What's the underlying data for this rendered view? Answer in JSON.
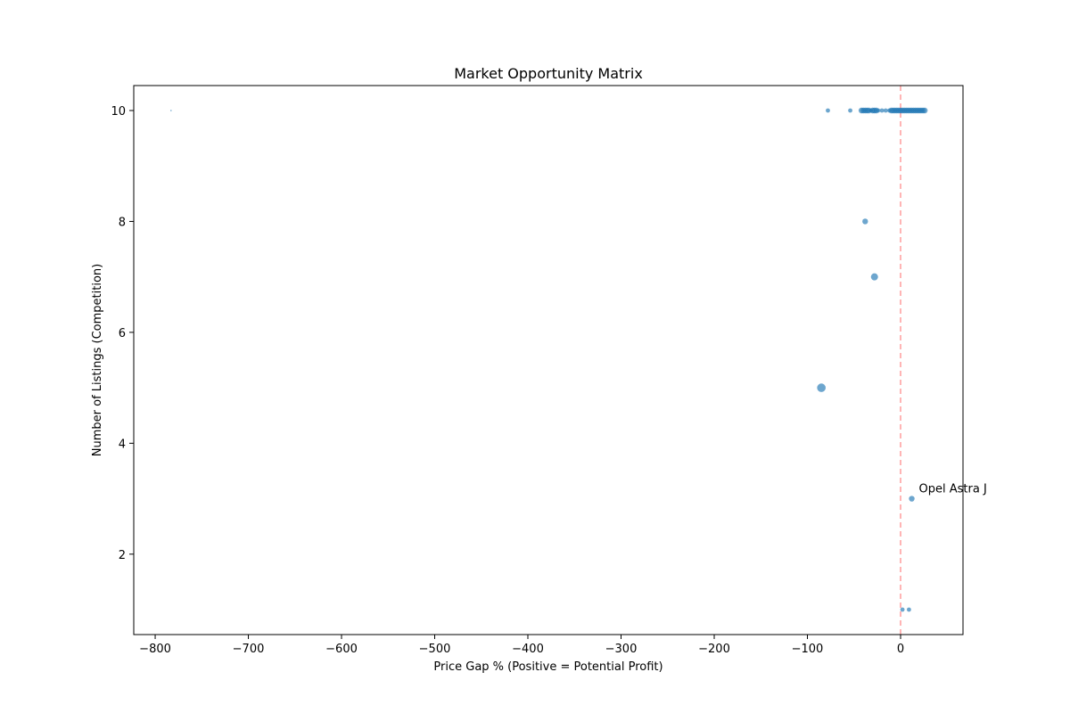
{
  "chart_data": {
    "type": "scatter",
    "title": "Market Opportunity Matrix",
    "xlabel": "Price Gap % (Positive = Potential Profit)",
    "ylabel": "Number of Listings (Competition)",
    "xlim": [
      -823,
      67
    ],
    "ylim": [
      0.55,
      10.45
    ],
    "xticks": [
      -800,
      -700,
      -600,
      -500,
      -400,
      -300,
      -200,
      -100,
      0
    ],
    "yticks": [
      2,
      4,
      6,
      8,
      10
    ],
    "xtick_labels": [
      "−800",
      "−700",
      "−600",
      "−500",
      "−400",
      "−300",
      "−200",
      "−100",
      "0"
    ],
    "ytick_labels": [
      "2",
      "4",
      "6",
      "8",
      "10"
    ],
    "grid": false,
    "legend": "none",
    "reference_line": {
      "x": 0,
      "color": "#ff9c9c",
      "style": "dashed"
    },
    "marker_color": "#1f77b4",
    "points": [
      {
        "x": -783,
        "y": 10,
        "size": 1
      },
      {
        "x": -78,
        "y": 10,
        "size": 3
      },
      {
        "x": -54,
        "y": 10,
        "size": 3
      },
      {
        "x": -42,
        "y": 10,
        "size": 4
      },
      {
        "x": -40,
        "y": 10,
        "size": 4
      },
      {
        "x": -38,
        "y": 10,
        "size": 4
      },
      {
        "x": -36,
        "y": 10,
        "size": 4
      },
      {
        "x": -34,
        "y": 10,
        "size": 4
      },
      {
        "x": -32,
        "y": 10,
        "size": 3
      },
      {
        "x": -30,
        "y": 10,
        "size": 4
      },
      {
        "x": -28,
        "y": 10,
        "size": 4
      },
      {
        "x": -26,
        "y": 10,
        "size": 4
      },
      {
        "x": -24,
        "y": 10,
        "size": 3
      },
      {
        "x": -20,
        "y": 10,
        "size": 3
      },
      {
        "x": -16,
        "y": 10,
        "size": 3
      },
      {
        "x": -12,
        "y": 10,
        "size": 3
      },
      {
        "x": -10,
        "y": 10,
        "size": 4
      },
      {
        "x": -8,
        "y": 10,
        "size": 4
      },
      {
        "x": -6,
        "y": 10,
        "size": 4
      },
      {
        "x": -4,
        "y": 10,
        "size": 4
      },
      {
        "x": -2,
        "y": 10,
        "size": 4
      },
      {
        "x": 0,
        "y": 10,
        "size": 4
      },
      {
        "x": 2,
        "y": 10,
        "size": 4
      },
      {
        "x": 4,
        "y": 10,
        "size": 4
      },
      {
        "x": 6,
        "y": 10,
        "size": 4
      },
      {
        "x": 8,
        "y": 10,
        "size": 4
      },
      {
        "x": 10,
        "y": 10,
        "size": 4
      },
      {
        "x": 12,
        "y": 10,
        "size": 4
      },
      {
        "x": 14,
        "y": 10,
        "size": 4
      },
      {
        "x": 16,
        "y": 10,
        "size": 4
      },
      {
        "x": 18,
        "y": 10,
        "size": 4
      },
      {
        "x": 20,
        "y": 10,
        "size": 4
      },
      {
        "x": 22,
        "y": 10,
        "size": 4
      },
      {
        "x": 24,
        "y": 10,
        "size": 4
      },
      {
        "x": 26,
        "y": 10,
        "size": 4
      },
      {
        "x": -38,
        "y": 8,
        "size": 4
      },
      {
        "x": -28,
        "y": 7,
        "size": 5
      },
      {
        "x": -85,
        "y": 5,
        "size": 6
      },
      {
        "x": 12,
        "y": 3,
        "size": 4
      },
      {
        "x": 2,
        "y": 1,
        "size": 3
      },
      {
        "x": 9,
        "y": 1,
        "size": 3
      }
    ],
    "annotations": [
      {
        "text": "Opel Astra J",
        "x": 12,
        "y": 3
      }
    ]
  }
}
